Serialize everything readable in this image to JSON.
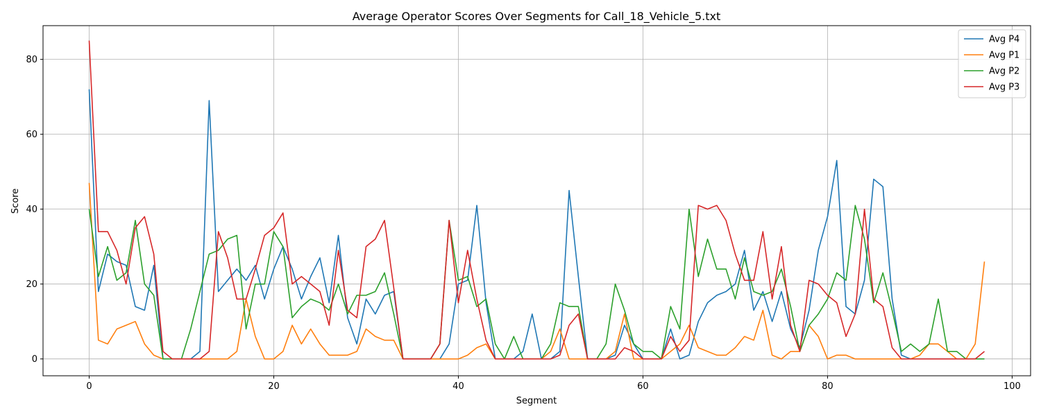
{
  "chart_data": {
    "type": "line",
    "title": "Average Operator Scores Over Segments for Call_18_Vehicle_5.txt",
    "xlabel": "Segment",
    "ylabel": "Score",
    "xlim": [
      -5,
      102
    ],
    "ylim": [
      -4.5,
      89
    ],
    "xticks": [
      0,
      20,
      40,
      60,
      80,
      100
    ],
    "yticks": [
      0,
      20,
      40,
      60,
      80
    ],
    "grid": true,
    "legend_position": "top-right",
    "series": [
      {
        "name": "Avg P4",
        "color": "#1f77b4",
        "values": [
          72,
          18,
          28,
          26,
          25,
          14,
          13,
          25,
          0,
          0,
          0,
          0,
          2,
          69,
          18,
          21,
          24,
          21,
          25,
          16,
          24,
          30,
          24,
          16,
          22,
          27,
          15,
          33,
          11,
          4,
          16,
          12,
          17,
          18,
          0,
          0,
          0,
          0,
          0,
          4,
          20,
          21,
          41,
          15,
          0,
          0,
          0,
          2,
          12,
          0,
          0,
          2,
          45,
          22,
          0,
          0,
          0,
          1,
          9,
          4,
          0,
          0,
          0,
          8,
          0,
          1,
          10,
          15,
          17,
          18,
          20,
          29,
          13,
          18,
          10,
          18,
          8,
          3,
          13,
          29,
          38,
          53,
          14,
          12,
          21,
          48,
          46,
          16,
          1,
          0,
          0,
          0,
          0,
          0,
          0,
          0,
          0,
          0
        ]
      },
      {
        "name": "Avg P1",
        "color": "#ff7f0e",
        "values": [
          47,
          5,
          4,
          8,
          9,
          10,
          4,
          1,
          0,
          0,
          0,
          0,
          0,
          0,
          0,
          0,
          2,
          16,
          6,
          0,
          0,
          2,
          9,
          4,
          8,
          4,
          1,
          1,
          1,
          2,
          8,
          6,
          5,
          5,
          0,
          0,
          0,
          0,
          0,
          0,
          0,
          1,
          3,
          4,
          0,
          0,
          0,
          0,
          0,
          0,
          2,
          8,
          0,
          0,
          0,
          0,
          0,
          2,
          12,
          0,
          0,
          0,
          0,
          2,
          4,
          9,
          3,
          2,
          1,
          1,
          3,
          6,
          5,
          13,
          1,
          0,
          2,
          2,
          9,
          6,
          0,
          1,
          1,
          0,
          0,
          0,
          0,
          0,
          0,
          0,
          1,
          4,
          4,
          2,
          0,
          0,
          4,
          26
        ]
      },
      {
        "name": "Avg P2",
        "color": "#2ca02c",
        "values": [
          40,
          22,
          30,
          21,
          23,
          37,
          20,
          17,
          0,
          0,
          0,
          8,
          18,
          28,
          29,
          32,
          33,
          8,
          20,
          20,
          34,
          30,
          11,
          14,
          16,
          15,
          13,
          20,
          12,
          17,
          17,
          18,
          23,
          12,
          0,
          0,
          0,
          0,
          4,
          37,
          21,
          22,
          14,
          16,
          4,
          0,
          6,
          0,
          0,
          0,
          4,
          15,
          14,
          14,
          0,
          0,
          4,
          20,
          13,
          4,
          2,
          2,
          0,
          14,
          8,
          40,
          22,
          32,
          24,
          24,
          16,
          27,
          18,
          17,
          18,
          24,
          14,
          2,
          9,
          12,
          16,
          23,
          21,
          41,
          32,
          15,
          23,
          13,
          2,
          4,
          2,
          4,
          16,
          2,
          2,
          0,
          0,
          0
        ]
      },
      {
        "name": "Avg P3",
        "color": "#d62728",
        "values": [
          85,
          34,
          34,
          29,
          20,
          35,
          38,
          28,
          2,
          0,
          0,
          0,
          0,
          2,
          34,
          27,
          16,
          16,
          24,
          33,
          35,
          39,
          20,
          22,
          20,
          18,
          9,
          29,
          13,
          11,
          30,
          32,
          37,
          19,
          0,
          0,
          0,
          0,
          4,
          37,
          15,
          29,
          16,
          5,
          0,
          0,
          0,
          0,
          0,
          0,
          0,
          1,
          9,
          12,
          0,
          0,
          0,
          0,
          3,
          2,
          0,
          0,
          0,
          6,
          2,
          5,
          41,
          40,
          41,
          37,
          28,
          21,
          21,
          34,
          16,
          30,
          9,
          2,
          21,
          20,
          17,
          15,
          6,
          12,
          40,
          16,
          14,
          3,
          0,
          0,
          0,
          0,
          0,
          0,
          0,
          0,
          0,
          2
        ]
      }
    ]
  }
}
